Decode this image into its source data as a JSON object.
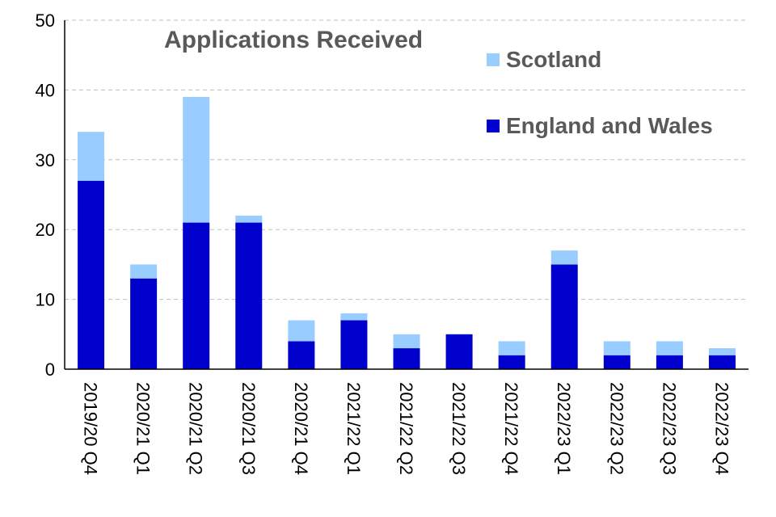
{
  "chart_data": {
    "type": "bar",
    "stacked": true,
    "title": "Applications Received",
    "categories": [
      "2019/20 Q4",
      "2020/21 Q1",
      "2020/21 Q2",
      "2020/21 Q3",
      "2020/21 Q4",
      "2021/22 Q1",
      "2021/22 Q2",
      "2021/22 Q3",
      "2021/22 Q4",
      "2022/23 Q1",
      "2022/23 Q2",
      "2022/23 Q3",
      "2022/23 Q4"
    ],
    "series": [
      {
        "name": "England and Wales",
        "color": "#0000CC",
        "values": [
          27,
          13,
          21,
          21,
          4,
          7,
          3,
          5,
          2,
          15,
          2,
          2,
          2
        ]
      },
      {
        "name": "Scotland",
        "color": "#99CCFF",
        "values": [
          7,
          2,
          18,
          1,
          3,
          1,
          2,
          0,
          2,
          2,
          2,
          2,
          1
        ]
      }
    ],
    "ylim": [
      0,
      50
    ],
    "yticks": [
      0,
      10,
      20,
      30,
      40,
      50
    ],
    "grid": "horizontal dashed",
    "legend_position": "top-right",
    "xlabel": "",
    "ylabel": ""
  }
}
